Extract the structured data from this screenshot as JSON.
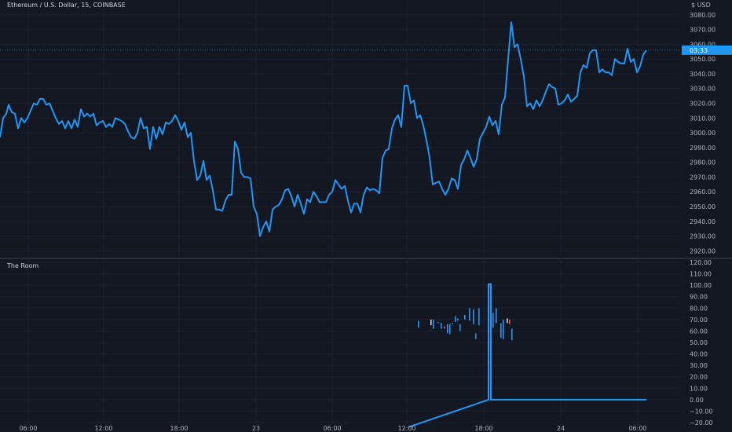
{
  "header": {
    "title": "Ethereum / U.S. Dollar, 15, COINBASE",
    "currency": "$ USD"
  },
  "indicator": {
    "title": "The Room"
  },
  "colors": {
    "background": "#131722",
    "grid": "#1e2230",
    "line": "#2196f3",
    "text": "#b2b5be",
    "marker_red": "#ef5350",
    "marker_white": "#d1d4dc"
  },
  "chart_data": [
    {
      "type": "line",
      "title": "Ethereum / U.S. Dollar, 15, COINBASE",
      "ylim": [
        2917,
        3090
      ],
      "yticks": [
        2920,
        2930,
        2940,
        2950,
        2960,
        2970,
        2980,
        2990,
        3000,
        3010,
        3020,
        3030,
        3040,
        3050,
        3060,
        3070,
        3080
      ],
      "last_value_label": "03:33",
      "last_value": 3056,
      "xticks": [
        {
          "label": "06:00",
          "x": 36
        },
        {
          "label": "12:00",
          "x": 132
        },
        {
          "label": "18:00",
          "x": 228
        },
        {
          "label": "23",
          "x": 326
        },
        {
          "label": "06:00",
          "x": 423
        },
        {
          "label": "12:00",
          "x": 518
        },
        {
          "label": "18:00",
          "x": 616
        },
        {
          "label": "24",
          "x": 714
        },
        {
          "label": "06:00",
          "x": 812
        }
      ],
      "x_range": [
        0,
        862
      ],
      "series": [
        {
          "values": [
            [
              0,
              2997
            ],
            [
              4,
              3010
            ],
            [
              8,
              3013
            ],
            [
              11,
              3019
            ],
            [
              15,
              3014
            ],
            [
              19,
              3013
            ],
            [
              23,
              3003
            ],
            [
              27,
              3010
            ],
            [
              31,
              3007
            ],
            [
              35,
              3010
            ],
            [
              39,
              3015
            ],
            [
              43,
              3020
            ],
            [
              47,
              3019
            ],
            [
              51,
              3023
            ],
            [
              55,
              3023
            ],
            [
              59,
              3019
            ],
            [
              63,
              3020
            ],
            [
              67,
              3015
            ],
            [
              71,
              3010
            ],
            [
              75,
              3006
            ],
            [
              79,
              3008
            ],
            [
              83,
              3003
            ],
            [
              87,
              3008
            ],
            [
              91,
              3003
            ],
            [
              95,
              3009
            ],
            [
              99,
              3004
            ],
            [
              103,
              3016
            ],
            [
              107,
              3011
            ],
            [
              111,
              3013
            ],
            [
              115,
              3011
            ],
            [
              119,
              3013
            ],
            [
              123,
              3005
            ],
            [
              127,
              3007
            ],
            [
              131,
              3008
            ],
            [
              135,
              3004
            ],
            [
              139,
              3006
            ],
            [
              143,
              3004
            ],
            [
              147,
              3010
            ],
            [
              151,
              3009
            ],
            [
              155,
              3008
            ],
            [
              159,
              3006
            ],
            [
              163,
              3001
            ],
            [
              167,
              2997
            ],
            [
              171,
              2996
            ],
            [
              175,
              3000
            ],
            [
              179,
              3010
            ],
            [
              183,
              3003
            ],
            [
              187,
              3004
            ],
            [
              191,
              2989
            ],
            [
              195,
              3004
            ],
            [
              199,
              2996
            ],
            [
              203,
              3004
            ],
            [
              207,
              2999
            ],
            [
              211,
              3007
            ],
            [
              215,
              3006
            ],
            [
              219,
              3008
            ],
            [
              223,
              3012
            ],
            [
              227,
              3008
            ],
            [
              231,
              3002
            ],
            [
              235,
              3007
            ],
            [
              239,
              2997
            ],
            [
              243,
              3000
            ],
            [
              247,
              2981
            ],
            [
              251,
              2968
            ],
            [
              255,
              2971
            ],
            [
              259,
              2981
            ],
            [
              263,
              2968
            ],
            [
              267,
              2971
            ],
            [
              271,
              2961
            ],
            [
              275,
              2948
            ],
            [
              279,
              2948
            ],
            [
              283,
              2947
            ],
            [
              287,
              2954
            ],
            [
              291,
              2958
            ],
            [
              295,
              2958
            ],
            [
              299,
              2994
            ],
            [
              303,
              2989
            ],
            [
              307,
              2973
            ],
            [
              311,
              2970
            ],
            [
              315,
              2970
            ],
            [
              319,
              2969
            ],
            [
              323,
              2950
            ],
            [
              327,
              2945
            ],
            [
              331,
              2930
            ],
            [
              335,
              2936
            ],
            [
              339,
              2940
            ],
            [
              343,
              2933
            ],
            [
              347,
              2948
            ],
            [
              351,
              2950
            ],
            [
              355,
              2951
            ],
            [
              359,
              2955
            ],
            [
              363,
              2961
            ],
            [
              367,
              2962
            ],
            [
              371,
              2957
            ],
            [
              375,
              2950
            ],
            [
              379,
              2958
            ],
            [
              383,
              2952
            ],
            [
              387,
              2945
            ],
            [
              391,
              2955
            ],
            [
              395,
              2953
            ],
            [
              399,
              2960
            ],
            [
              403,
              2957
            ],
            [
              407,
              2953
            ],
            [
              411,
              2953
            ],
            [
              415,
              2953
            ],
            [
              419,
              2958
            ],
            [
              423,
              2960
            ],
            [
              427,
              2968
            ],
            [
              431,
              2965
            ],
            [
              435,
              2962
            ],
            [
              439,
              2964
            ],
            [
              443,
              2954
            ],
            [
              447,
              2946
            ],
            [
              451,
              2952
            ],
            [
              455,
              2952
            ],
            [
              459,
              2946
            ],
            [
              463,
              2958
            ],
            [
              467,
              2963
            ],
            [
              471,
              2961
            ],
            [
              475,
              2962
            ],
            [
              479,
              2961
            ],
            [
              483,
              2959
            ],
            [
              487,
              2983
            ],
            [
              491,
              2988
            ],
            [
              495,
              2989
            ],
            [
              499,
              3003
            ],
            [
              503,
              3009
            ],
            [
              507,
              3012
            ],
            [
              511,
              3004
            ],
            [
              515,
              3032
            ],
            [
              519,
              3032
            ],
            [
              523,
              3020
            ],
            [
              527,
              3022
            ],
            [
              531,
              3010
            ],
            [
              535,
              3012
            ],
            [
              539,
              3005
            ],
            [
              543,
              2995
            ],
            [
              547,
              2983
            ],
            [
              551,
              2965
            ],
            [
              555,
              2966
            ],
            [
              559,
              2967
            ],
            [
              563,
              2962
            ],
            [
              567,
              2958
            ],
            [
              571,
              2962
            ],
            [
              575,
              2969
            ],
            [
              579,
              2968
            ],
            [
              583,
              2962
            ],
            [
              587,
              2978
            ],
            [
              591,
              2982
            ],
            [
              595,
              2988
            ],
            [
              599,
              2983
            ],
            [
              603,
              2977
            ],
            [
              607,
              2982
            ],
            [
              611,
              2996
            ],
            [
              615,
              3000
            ],
            [
              619,
              3004
            ],
            [
              623,
              3011
            ],
            [
              627,
              3005
            ],
            [
              631,
              3008
            ],
            [
              635,
              2999
            ],
            [
              639,
              3019
            ],
            [
              643,
              3024
            ],
            [
              647,
              3050
            ],
            [
              651,
              3075
            ],
            [
              655,
              3058
            ],
            [
              659,
              3060
            ],
            [
              663,
              3050
            ],
            [
              667,
              3038
            ],
            [
              671,
              3018
            ],
            [
              675,
              3020
            ],
            [
              679,
              3016
            ],
            [
              683,
              3022
            ],
            [
              687,
              3018
            ],
            [
              691,
              3022
            ],
            [
              695,
              3028
            ],
            [
              699,
              3033
            ],
            [
              703,
              3031
            ],
            [
              707,
              3030
            ],
            [
              711,
              3019
            ],
            [
              715,
              3020
            ],
            [
              719,
              3022
            ],
            [
              723,
              3026
            ],
            [
              727,
              3021
            ],
            [
              731,
              3023
            ],
            [
              735,
              3025
            ],
            [
              739,
              3041
            ],
            [
              743,
              3046
            ],
            [
              747,
              3044
            ],
            [
              751,
              3054
            ],
            [
              755,
              3056
            ],
            [
              759,
              3056
            ],
            [
              763,
              3041
            ],
            [
              767,
              3043
            ],
            [
              771,
              3041
            ],
            [
              775,
              3041
            ],
            [
              779,
              3039
            ],
            [
              783,
              3050
            ],
            [
              787,
              3048
            ],
            [
              791,
              3047
            ],
            [
              795,
              3047
            ],
            [
              799,
              3057
            ],
            [
              803,
              3048
            ],
            [
              807,
              3050
            ],
            [
              811,
              3041
            ],
            [
              815,
              3045
            ],
            [
              819,
              3053
            ],
            [
              823,
              3056
            ]
          ]
        }
      ]
    },
    {
      "type": "line",
      "title": "The Room",
      "ylim": [
        -20,
        120
      ],
      "yticks": [
        -20,
        -10,
        0,
        10,
        20,
        30,
        40,
        50,
        60,
        70,
        80,
        90,
        100,
        110,
        120
      ],
      "series": [
        {
          "values": [
            [
              520,
              -24
            ],
            [
              622,
              0
            ],
            [
              622,
              101
            ],
            [
              625,
              101
            ],
            [
              625,
              0
            ],
            [
              823,
              0
            ]
          ]
        }
      ],
      "markers": [
        {
          "x": 532,
          "lo": 63,
          "hi": 69
        },
        {
          "x": 548,
          "lo": 65,
          "hi": 70,
          "color": "white"
        },
        {
          "x": 551,
          "lo": 62,
          "hi": 70
        },
        {
          "x": 557,
          "lo": 68,
          "hi": 68
        },
        {
          "x": 561,
          "lo": 62,
          "hi": 67
        },
        {
          "x": 565,
          "lo": 62,
          "hi": 64,
          "color": "red"
        },
        {
          "x": 569,
          "lo": 58,
          "hi": 66
        },
        {
          "x": 572,
          "lo": 57,
          "hi": 66
        },
        {
          "x": 575,
          "lo": 67,
          "hi": 67
        },
        {
          "x": 579,
          "lo": 68,
          "hi": 73
        },
        {
          "x": 582,
          "lo": 69,
          "hi": 71
        },
        {
          "x": 585,
          "lo": 60,
          "hi": 66
        },
        {
          "x": 591,
          "lo": 70,
          "hi": 74
        },
        {
          "x": 597,
          "lo": 69,
          "hi": 80
        },
        {
          "x": 602,
          "lo": 66,
          "hi": 79
        },
        {
          "x": 605,
          "lo": 53,
          "hi": 58
        },
        {
          "x": 609,
          "lo": 65,
          "hi": 80
        },
        {
          "x": 627,
          "lo": 63,
          "hi": 76
        },
        {
          "x": 631,
          "lo": 67,
          "hi": 80
        },
        {
          "x": 637,
          "lo": 54,
          "hi": 67
        },
        {
          "x": 640,
          "lo": 53,
          "hi": 70
        },
        {
          "x": 645,
          "lo": 67,
          "hi": 71,
          "color": "white"
        },
        {
          "x": 648,
          "lo": 66,
          "hi": 70,
          "color": "red"
        },
        {
          "x": 651,
          "lo": 52,
          "hi": 62
        }
      ]
    }
  ]
}
